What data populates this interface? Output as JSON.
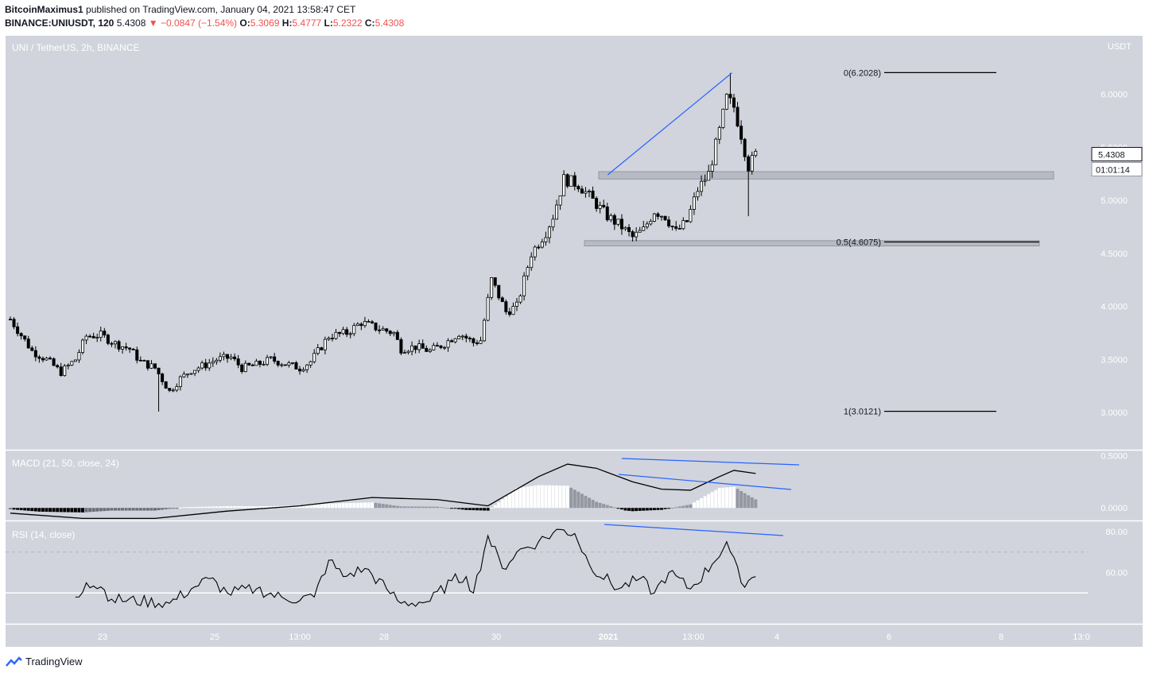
{
  "header": {
    "author": "BitcoinMaximus1",
    "published_text": "published on TradingView.com, January 04, 2021 13:58:47 CET",
    "symbol": "BINANCE:UNIUSDT, 120",
    "last": "5.4308",
    "change": "−0.0847 (−1.54%)",
    "o_label": "O:",
    "o_value": "5.3069",
    "h_label": "H:",
    "h_value": "5.4777",
    "l_label": "L:",
    "l_value": "5.2322",
    "c_label": "C:",
    "c_value": "5.4308"
  },
  "footer": {
    "brand": "TradingView"
  },
  "colors": {
    "background": "#d1d4dc",
    "candle_up": "#ffffff",
    "candle_down": "#000000",
    "trendline": "#2962ff",
    "zone": "#b2b5be"
  },
  "chart_data": [
    {
      "type": "candlestick",
      "pane": "price",
      "title": "UNI / TetherUS, 2h, BINANCE",
      "currency": "USDT",
      "ylim": [
        2.65,
        6.55
      ],
      "yticks": [
        3.0,
        3.5,
        4.0,
        4.5,
        5.0,
        5.5,
        6.0
      ],
      "ytick_labels": [
        "3.0000",
        "3.5000",
        "4.0000",
        "4.5000",
        "5.0000",
        "5.5000",
        "6.0000"
      ],
      "xtick_labels": [
        "23",
        "25",
        "13:00",
        "28",
        "30",
        "2021",
        "13:00",
        "4",
        "6",
        "8",
        "13:0"
      ],
      "last_price_label": "5.4308",
      "countdown_label": "01:01:14",
      "close_path": [
        [
          0,
          3.88
        ],
        [
          6,
          3.58
        ],
        [
          10,
          3.5
        ],
        [
          14,
          3.38
        ],
        [
          18,
          3.5
        ],
        [
          21,
          3.72
        ],
        [
          25,
          3.73
        ],
        [
          29,
          3.65
        ],
        [
          33,
          3.6
        ],
        [
          36,
          3.48
        ],
        [
          40,
          3.42
        ],
        [
          44,
          3.2
        ],
        [
          47,
          3.32
        ],
        [
          50,
          3.4
        ],
        [
          54,
          3.45
        ],
        [
          57,
          3.5
        ],
        [
          61,
          3.52
        ],
        [
          64,
          3.42
        ],
        [
          68,
          3.45
        ],
        [
          72,
          3.5
        ],
        [
          76,
          3.46
        ],
        [
          80,
          3.42
        ],
        [
          83,
          3.48
        ],
        [
          88,
          3.72
        ],
        [
          93,
          3.75
        ],
        [
          97,
          3.85
        ],
        [
          101,
          3.8
        ],
        [
          106,
          3.75
        ],
        [
          108,
          3.6
        ],
        [
          112,
          3.62
        ],
        [
          116,
          3.58
        ],
        [
          120,
          3.65
        ],
        [
          124,
          3.75
        ],
        [
          128,
          3.66
        ],
        [
          130,
          3.68
        ],
        [
          133,
          4.25
        ],
        [
          137,
          3.95
        ],
        [
          140,
          4.0
        ],
        [
          144,
          4.5
        ],
        [
          148,
          4.7
        ],
        [
          150,
          4.85
        ],
        [
          153,
          5.2
        ],
        [
          157,
          5.15
        ],
        [
          161,
          5.0
        ],
        [
          165,
          4.85
        ],
        [
          169,
          4.75
        ],
        [
          172,
          4.65
        ],
        [
          175,
          4.72
        ],
        [
          178,
          4.9
        ],
        [
          181,
          4.85
        ],
        [
          184,
          4.7
        ],
        [
          187,
          4.8
        ],
        [
          190,
          5.1
        ],
        [
          193,
          5.25
        ],
        [
          196,
          5.65
        ],
        [
          198,
          5.96
        ],
        [
          200,
          5.88
        ],
        [
          202,
          5.62
        ],
        [
          204,
          5.32
        ],
        [
          206,
          5.43
        ]
      ],
      "annotations": [
        {
          "label": "0(6.2028)",
          "level": 6.2028
        },
        {
          "label": "0.5(4.6075)",
          "level": 4.6075
        },
        {
          "label": "1(3.0121)",
          "level": 3.0121
        }
      ],
      "zones": [
        {
          "from": 5.2,
          "to": 5.27
        },
        {
          "from": 4.57,
          "to": 4.62
        }
      ]
    },
    {
      "type": "line",
      "pane": "macd",
      "title": "MACD (21, 50, close, 24)",
      "ylim": [
        -0.12,
        0.55
      ],
      "yticks": [
        0.0,
        0.5
      ],
      "ytick_labels": [
        "0.0000",
        "0.5000"
      ],
      "series": [
        {
          "values": [
            [
              0,
              -0.05
            ],
            [
              20,
              -0.1
            ],
            [
              40,
              -0.1
            ],
            [
              60,
              -0.03
            ],
            [
              80,
              0.02
            ],
            [
              100,
              0.1
            ],
            [
              118,
              0.08
            ],
            [
              132,
              0.02
            ],
            [
              146,
              0.3
            ],
            [
              154,
              0.42
            ],
            [
              162,
              0.38
            ],
            [
              172,
              0.25
            ],
            [
              180,
              0.18
            ],
            [
              188,
              0.17
            ],
            [
              196,
              0.3
            ],
            [
              200,
              0.36
            ],
            [
              206,
              0.33
            ]
          ]
        }
      ]
    },
    {
      "type": "line",
      "pane": "rsi",
      "title": "RSI (14, close)",
      "ylim": [
        35,
        85
      ],
      "yticks": [
        60,
        80
      ],
      "ytick_labels": [
        "60.00",
        "80.00"
      ],
      "series": [
        {
          "values": [
            [
              18,
              48
            ],
            [
              21,
              55
            ],
            [
              25,
              53
            ],
            [
              28,
              47
            ],
            [
              44,
              45
            ],
            [
              50,
              52
            ],
            [
              55,
              57
            ],
            [
              60,
              50
            ],
            [
              68,
              52
            ],
            [
              76,
              47
            ],
            [
              84,
              48
            ],
            [
              88,
              66
            ],
            [
              92,
              58
            ],
            [
              98,
              62
            ],
            [
              104,
              52
            ],
            [
              108,
              45
            ],
            [
              116,
              46
            ],
            [
              122,
              56
            ],
            [
              126,
              58
            ],
            [
              128,
              50
            ],
            [
              132,
              78
            ],
            [
              136,
              62
            ],
            [
              140,
              70
            ],
            [
              146,
              75
            ],
            [
              152,
              81
            ],
            [
              156,
              79
            ],
            [
              160,
              64
            ],
            [
              168,
              52
            ],
            [
              174,
              57
            ],
            [
              178,
              50
            ],
            [
              182,
              60
            ],
            [
              188,
              52
            ],
            [
              194,
              64
            ],
            [
              198,
              75
            ],
            [
              202,
              55
            ],
            [
              206,
              58
            ]
          ]
        }
      ]
    }
  ]
}
